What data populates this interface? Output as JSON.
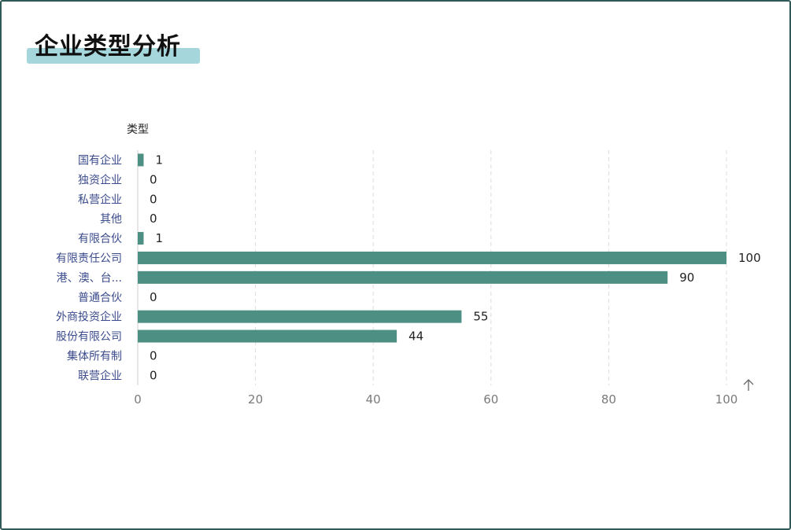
{
  "page": {
    "title": "企业类型分析"
  },
  "colors": {
    "bar": "#4e8f83",
    "frame": "#2f5a57",
    "title_highlight": "#a5d6dc",
    "category_label": "#3b4b8c",
    "grid": "#dddddd"
  },
  "chart_data": {
    "type": "bar",
    "orientation": "horizontal",
    "ylabel": "类型",
    "categories": [
      "国有企业",
      "独资企业",
      "私营企业",
      "其他",
      "有限合伙",
      "有限责任公司",
      "港、澳、台...",
      "普通合伙",
      "外商投资企业",
      "股份有限公司",
      "集体所有制",
      "联营企业"
    ],
    "values": [
      1,
      0,
      0,
      0,
      1,
      100,
      90,
      0,
      55,
      44,
      0,
      0
    ],
    "xlim": [
      0,
      100
    ],
    "xticks": [
      0,
      20,
      40,
      60,
      80,
      100
    ],
    "grid": "vertical dashed",
    "data_labels": true,
    "icon": "arrow-up-icon"
  }
}
